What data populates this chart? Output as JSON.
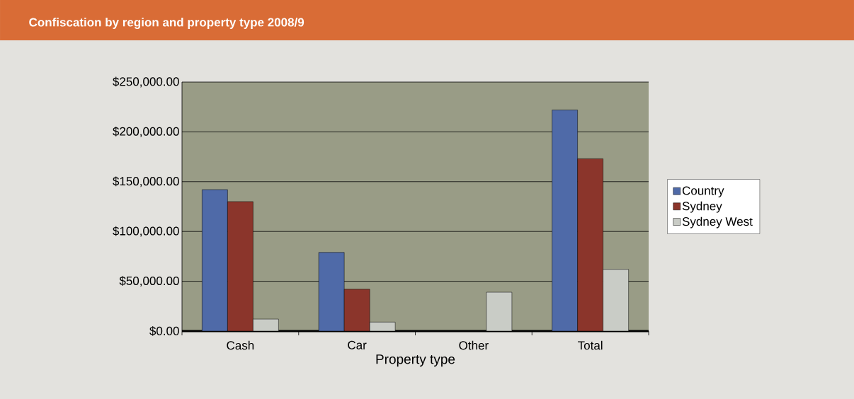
{
  "chart_data": {
    "type": "bar",
    "title": "Confiscation by region and property type 2008/9",
    "xlabel": "Property type",
    "categories": [
      "Cash",
      "Car",
      "Other",
      "Total"
    ],
    "series": [
      {
        "name": "Country",
        "color": "#4f6aa8",
        "values": [
          142000,
          79000,
          null,
          222000
        ]
      },
      {
        "name": "Sydney",
        "color": "#8b352b",
        "values": [
          130000,
          42000,
          null,
          173000
        ]
      },
      {
        "name": "Sydney West",
        "color": "#c9ccc6",
        "values": [
          12000,
          9000,
          39000,
          62000
        ]
      }
    ],
    "ylim": [
      0,
      250000
    ],
    "yticks": [
      {
        "value": 0,
        "label": "$0.00"
      },
      {
        "value": 50000,
        "label": "$50,000.00"
      },
      {
        "value": 100000,
        "label": "$100,000.00"
      },
      {
        "value": 150000,
        "label": "$150,000.00"
      },
      {
        "value": 200000,
        "label": "$200,000.00"
      },
      {
        "value": 250000,
        "label": "$250,000.00"
      }
    ],
    "grid": "y",
    "legend": "right"
  }
}
